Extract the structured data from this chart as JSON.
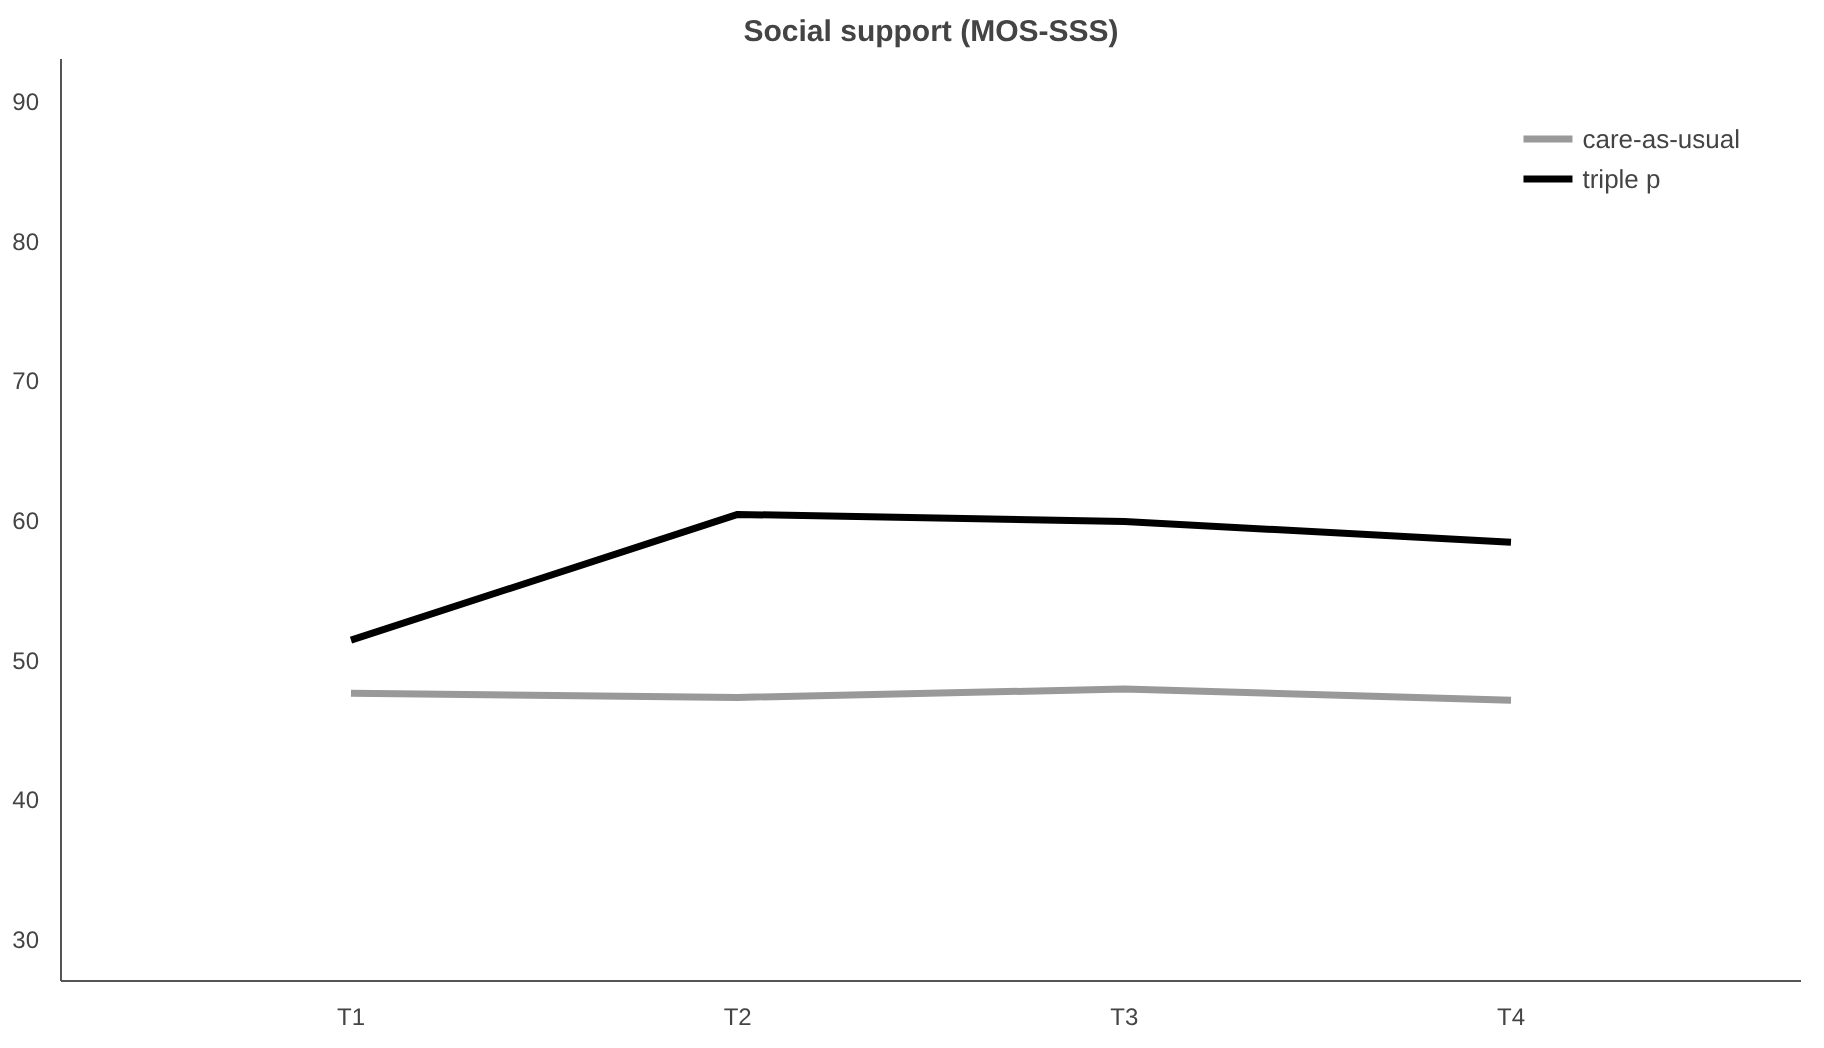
{
  "chart_data": {
    "type": "line",
    "title": "Social support (MOS-SSS)",
    "categories": [
      "T1",
      "T2",
      "T3",
      "T4"
    ],
    "series": [
      {
        "name": "care-as-usual",
        "color": "#999999",
        "values": [
          47.6,
          47.3,
          47.9,
          47.1
        ]
      },
      {
        "name": "triple p",
        "color": "#000000",
        "values": [
          51.4,
          60.4,
          59.9,
          58.4
        ]
      }
    ],
    "ylim": [
      27,
      93
    ],
    "yticks": [
      30,
      40,
      50,
      60,
      70,
      80,
      90
    ],
    "grid": false,
    "legend": "top right",
    "marker": "none",
    "line_style": "solid"
  }
}
